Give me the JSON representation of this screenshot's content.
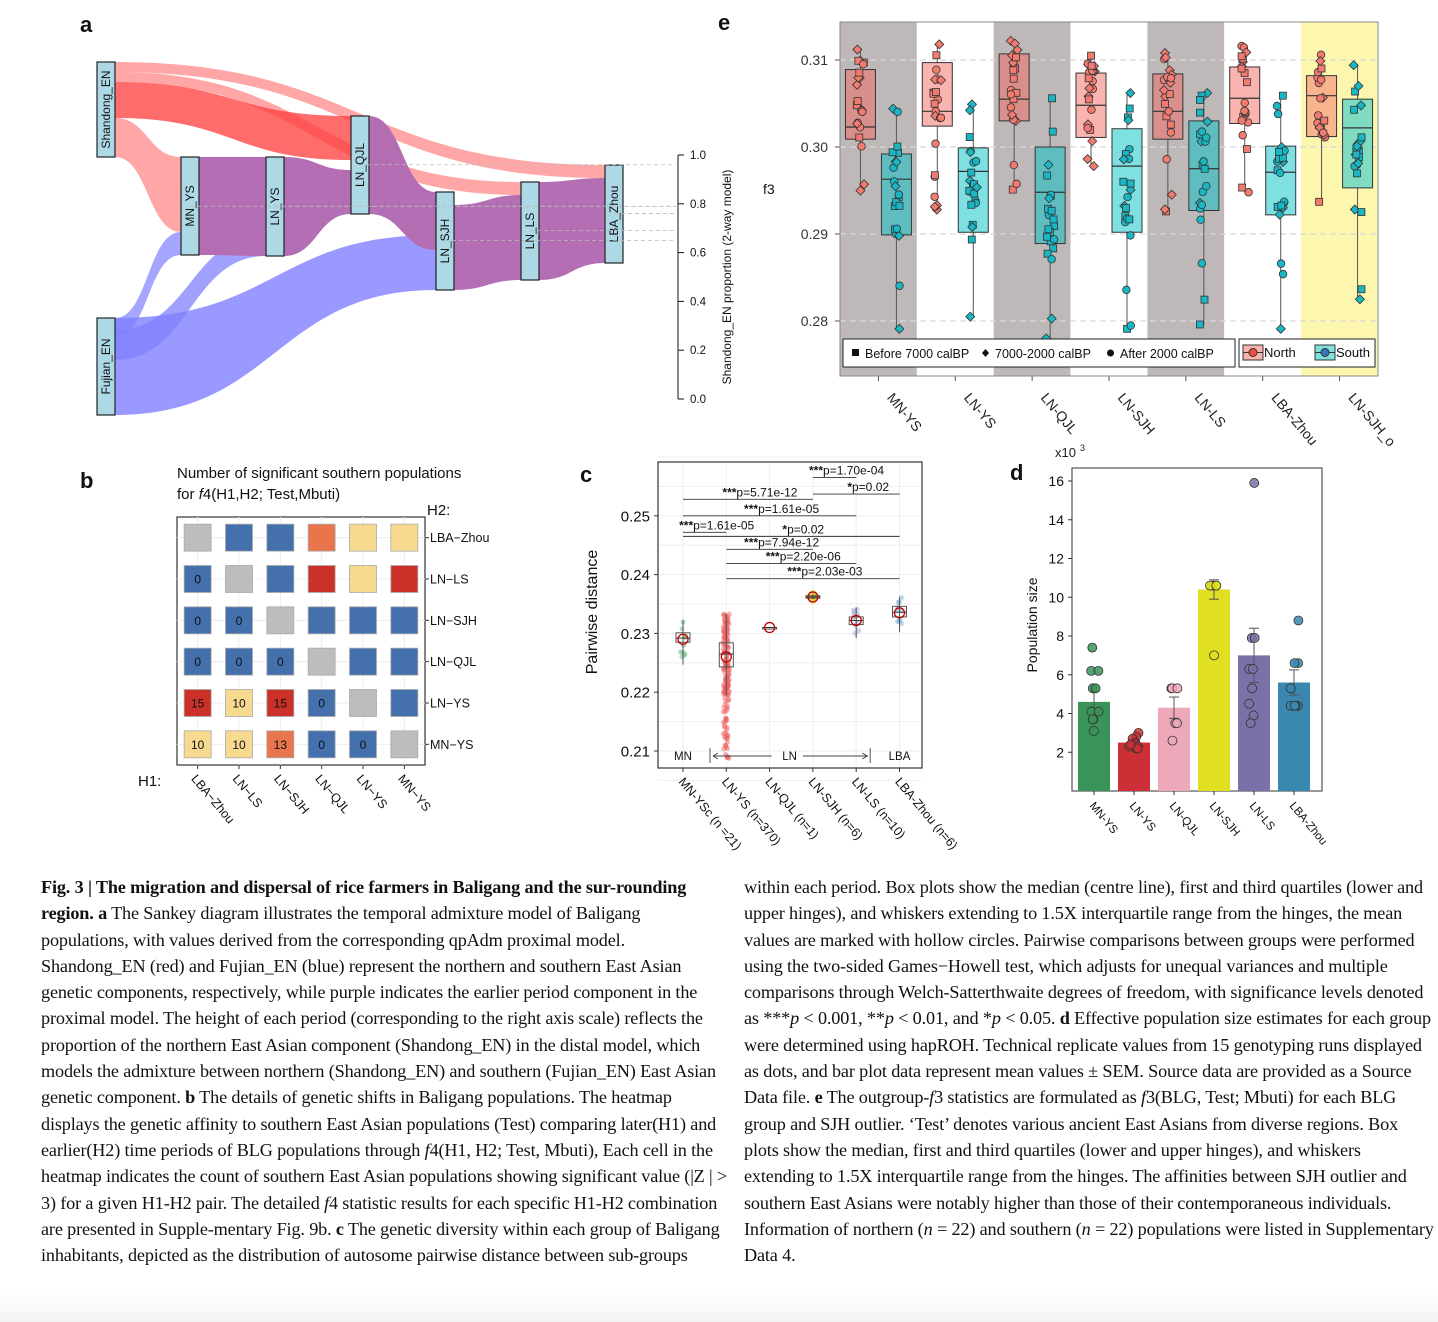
{
  "panels": {
    "a": "a",
    "b": "b",
    "c": "c",
    "d": "d",
    "e": "e"
  },
  "chart_data": [
    {
      "id": "a",
      "type": "sankey",
      "title": "",
      "nodes": [
        {
          "name": "Shandong_EN",
          "color": "#ff2b2b"
        },
        {
          "name": "Fujian_EN",
          "color": "#3333ff"
        },
        {
          "name": "MN_YS",
          "shandong_proportion": 0.79
        },
        {
          "name": "LN_YS",
          "shandong_proportion": 0.79
        },
        {
          "name": "LN_QJL",
          "shandong_proportion": 0.96
        },
        {
          "name": "LN_SJH",
          "shandong_proportion": 0.65
        },
        {
          "name": "LN_LS",
          "shandong_proportion": 0.69
        },
        {
          "name": "LBA_Zhou",
          "shandong_proportion": 0.76
        }
      ],
      "flow_colors": {
        "northern": "#ff6b6b",
        "southern": "#8080ff",
        "earlier_period": "#b46fb4"
      },
      "right_axis": {
        "label": "Shandong_EN proportion (2-way model)",
        "ticks": [
          "0.0",
          "0.2",
          "0.4",
          "0.6",
          "0.8",
          "1.0"
        ],
        "range": [
          0,
          1
        ]
      }
    },
    {
      "id": "b",
      "type": "heatmap",
      "title_line1": "Number of significant southern populations",
      "title_line2_prefix": "for ",
      "title_line2_italic": "f",
      "title_line2_suffix": "4(H1,H2; Test,Mbuti)",
      "x_axis_label": "H1:",
      "y_axis_label": "H2:",
      "x_categories": [
        "LBA−Zhou",
        "LN−LS",
        "LN−SJH",
        "LN−QJL",
        "LN−YS",
        "MN−YS"
      ],
      "y_categories": [
        "LBA−Zhou",
        "LN−LS",
        "LN−SJH",
        "LN−QJL",
        "LN−YS",
        "MN−YS"
      ],
      "cells": [
        [
          {
            "c": "diag",
            "v": ""
          },
          {
            "c": "blue",
            "v": ""
          },
          {
            "c": "blue",
            "v": ""
          },
          {
            "c": "orange",
            "v": ""
          },
          {
            "c": "yellow",
            "v": ""
          },
          {
            "c": "yellow",
            "v": ""
          }
        ],
        [
          {
            "c": "blue",
            "v": "0"
          },
          {
            "c": "diag",
            "v": ""
          },
          {
            "c": "blue",
            "v": ""
          },
          {
            "c": "red",
            "v": ""
          },
          {
            "c": "yellow",
            "v": ""
          },
          {
            "c": "red",
            "v": ""
          }
        ],
        [
          {
            "c": "blue",
            "v": "0"
          },
          {
            "c": "blue",
            "v": "0"
          },
          {
            "c": "diag",
            "v": ""
          },
          {
            "c": "blue",
            "v": ""
          },
          {
            "c": "blue",
            "v": ""
          },
          {
            "c": "blue",
            "v": ""
          }
        ],
        [
          {
            "c": "blue",
            "v": "0"
          },
          {
            "c": "blue",
            "v": "0"
          },
          {
            "c": "blue",
            "v": "0"
          },
          {
            "c": "diag",
            "v": ""
          },
          {
            "c": "blue",
            "v": ""
          },
          {
            "c": "blue",
            "v": ""
          }
        ],
        [
          {
            "c": "red",
            "v": "15"
          },
          {
            "c": "yellow",
            "v": "10"
          },
          {
            "c": "red",
            "v": "15"
          },
          {
            "c": "blue",
            "v": "0"
          },
          {
            "c": "diag",
            "v": ""
          },
          {
            "c": "blue",
            "v": ""
          }
        ],
        [
          {
            "c": "yellow",
            "v": "10"
          },
          {
            "c": "yellow",
            "v": "10"
          },
          {
            "c": "orange",
            "v": "13"
          },
          {
            "c": "blue",
            "v": "0"
          },
          {
            "c": "blue",
            "v": "0"
          },
          {
            "c": "diag",
            "v": ""
          }
        ]
      ],
      "palette": {
        "blue": "#4470ab",
        "red": "#cc3129",
        "orange": "#e8754b",
        "yellow": "#f7da8f",
        "diag": "#bdbdbd"
      }
    },
    {
      "id": "c",
      "type": "box",
      "ylabel": "Pairwise distance",
      "ylim": [
        0.2085,
        0.2605
      ],
      "yticks": [
        "0.21",
        "0.22",
        "0.23",
        "0.24",
        "0.25"
      ],
      "yvals": [
        0.21,
        0.22,
        0.23,
        0.24,
        0.25
      ],
      "categories": [
        "MN-YSc (n =21)",
        "LN-YS (n=370)",
        "LN-QJL (n=1)",
        "LN-SJH (n=6)",
        "LN-LS (n=10)",
        "LBA-Zhou (n=6)"
      ],
      "groups": [
        {
          "color": "#5fb87a",
          "q1": 0.2285,
          "median": 0.2292,
          "q3": 0.2301,
          "lo": 0.2247,
          "hi": 0.2323,
          "mean": 0.229,
          "spread": [
            0.2245,
            0.2323
          ]
        },
        {
          "color": "#ee5a5a",
          "q1": 0.2243,
          "median": 0.2265,
          "q3": 0.2284,
          "lo": 0.2195,
          "hi": 0.2334,
          "mean": 0.226,
          "spread": [
            0.2085,
            0.2334
          ]
        },
        {
          "color": "#cc2020",
          "q1": 0.231,
          "median": 0.231,
          "q3": 0.231,
          "lo": 0.231,
          "hi": 0.231,
          "mean": 0.231,
          "spread": [
            0.231,
            0.231
          ]
        },
        {
          "color": "#e6d22a",
          "q1": 0.236,
          "median": 0.2362,
          "q3": 0.2364,
          "lo": 0.2358,
          "hi": 0.2367,
          "mean": 0.2362,
          "spread": [
            0.2358,
            0.2367
          ]
        },
        {
          "color": "#9b9bd0",
          "q1": 0.2315,
          "median": 0.2322,
          "q3": 0.2328,
          "lo": 0.2292,
          "hi": 0.2344,
          "mean": 0.2322,
          "spread": [
            0.2292,
            0.2344
          ]
        },
        {
          "color": "#6ea9d6",
          "q1": 0.2328,
          "median": 0.2336,
          "q3": 0.2346,
          "lo": 0.2302,
          "hi": 0.2362,
          "mean": 0.2335,
          "spread": [
            0.2302,
            0.2362
          ]
        }
      ],
      "comparisons": [
        {
          "label_stars": "***",
          "label_p": "p=1.70e-04",
          "from": 3,
          "to": 4,
          "y": 0.2565
        },
        {
          "label_stars": "*",
          "label_p": "p=0.02",
          "from": 3,
          "to": 5,
          "y": 0.2537
        },
        {
          "label_stars": "***",
          "label_p": "p=5.71e-12",
          "from": 0,
          "to": 3,
          "y": 0.2528
        },
        {
          "label_stars": "***",
          "label_p": "p=1.61e-05",
          "from": 0,
          "to": 4,
          "y": 0.25
        },
        {
          "label_stars": "***",
          "label_p": "p=1.61e-05",
          "from": 0,
          "to": 1,
          "y": 0.2472
        },
        {
          "label_stars": "*",
          "label_p": "p=0.02",
          "from": 0,
          "to": 5,
          "y": 0.2465
        },
        {
          "label_stars": "***",
          "label_p": "p=7.94e-12",
          "from": 1,
          "to": 3,
          "y": 0.2443
        },
        {
          "label_stars": "***",
          "label_p": "p=2.20e-06",
          "from": 1,
          "to": 4,
          "y": 0.2419
        },
        {
          "label_stars": "***",
          "label_p": "p=2.03e-03",
          "from": 1,
          "to": 5,
          "y": 0.2393
        }
      ],
      "period_labels": {
        "mn": "MN",
        "ln": "LN",
        "lba": "LBA"
      }
    },
    {
      "id": "d",
      "type": "bar",
      "ylabel": "Population size",
      "yscale_label": "x10",
      "yscale_exp": "3",
      "ylim": [
        0,
        16.6
      ],
      "yticks": [
        "2",
        "4",
        "6",
        "8",
        "10",
        "12",
        "14",
        "16"
      ],
      "yvals": [
        2,
        4,
        6,
        8,
        10,
        12,
        14,
        16
      ],
      "categories": [
        "MN-YS",
        "LN-YS",
        "LN-QJL",
        "LN-SJH",
        "LN-LS",
        "LBA-Zhou"
      ],
      "values": [
        4.6,
        2.5,
        4.3,
        10.4,
        7.0,
        5.6
      ],
      "sem": [
        0.55,
        0.15,
        0.55,
        0.5,
        1.4,
        0.65
      ],
      "colors": [
        "#3a9358",
        "#cc2f35",
        "#eda9b9",
        "#e0df22",
        "#7a71a8",
        "#3a87b0"
      ],
      "points": [
        [
          7.4,
          6.2,
          6.2,
          5.3,
          5.3,
          4.1,
          4.1,
          3.7,
          3.7,
          3.1
        ],
        [
          3.0,
          2.8,
          2.7,
          2.5,
          2.4,
          2.3,
          2.3,
          2.2,
          2.2,
          2.4
        ],
        [
          5.3,
          5.3,
          5.3,
          3.5,
          3.5,
          2.6
        ],
        [
          10.6,
          10.6,
          10.6,
          10.6,
          7.0
        ],
        [
          15.9,
          7.9,
          7.9,
          6.3,
          6.3,
          5.3,
          4.5,
          3.9,
          3.5
        ],
        [
          8.8,
          6.6,
          6.6,
          5.3,
          5.3,
          4.4,
          4.4,
          4.4,
          4.4
        ]
      ]
    },
    {
      "id": "e",
      "type": "box",
      "ylabel": "f3",
      "ylim": [
        0.2755,
        0.3143
      ],
      "yticks": [
        "0.28",
        "0.29",
        "0.30",
        "0.31"
      ],
      "yvals": [
        0.28,
        0.29,
        0.3,
        0.31
      ],
      "categories": [
        "MN-YS",
        "LN-YS",
        "LN-QJL",
        "LN-SJH",
        "LN-LS",
        "LBA-Zhou",
        "LN-SJH_o"
      ],
      "bands": [
        "#beb8b8",
        "#ffffff",
        "#beb8b8",
        "#ffffff",
        "#beb8b8",
        "#ffffff",
        "#fdf6ae"
      ],
      "north": [
        {
          "q1": 0.3009,
          "median": 0.3023,
          "q3": 0.3089,
          "lo": 0.295,
          "hi": 0.3112,
          "fill": "#d98f8c"
        },
        {
          "q1": 0.3024,
          "median": 0.3041,
          "q3": 0.3097,
          "lo": 0.2928,
          "hi": 0.3118,
          "fill": "#f9b4b0"
        },
        {
          "q1": 0.303,
          "median": 0.3055,
          "q3": 0.3107,
          "lo": 0.2951,
          "hi": 0.3122,
          "fill": "#d98f8c"
        },
        {
          "q1": 0.3011,
          "median": 0.3048,
          "q3": 0.3085,
          "lo": 0.2978,
          "hi": 0.3105,
          "fill": "#f9b4b0"
        },
        {
          "q1": 0.3009,
          "median": 0.3041,
          "q3": 0.3084,
          "lo": 0.2926,
          "hi": 0.3108,
          "fill": "#d98f8c"
        },
        {
          "q1": 0.3027,
          "median": 0.3056,
          "q3": 0.3092,
          "lo": 0.2948,
          "hi": 0.3116,
          "fill": "#f9b4b0"
        },
        {
          "q1": 0.3012,
          "median": 0.3059,
          "q3": 0.3082,
          "lo": 0.2937,
          "hi": 0.3106,
          "fill": "#f9b48e"
        }
      ],
      "south": [
        {
          "q1": 0.2899,
          "median": 0.2963,
          "q3": 0.2992,
          "lo": 0.2791,
          "hi": 0.3044,
          "fill": "#5fbdbf"
        },
        {
          "q1": 0.2902,
          "median": 0.2972,
          "q3": 0.2999,
          "lo": 0.2805,
          "hi": 0.3049,
          "fill": "#7fe0e2"
        },
        {
          "q1": 0.2889,
          "median": 0.2948,
          "q3": 0.3,
          "lo": 0.278,
          "hi": 0.3056,
          "fill": "#5fbdbf"
        },
        {
          "q1": 0.2902,
          "median": 0.2978,
          "q3": 0.3021,
          "lo": 0.2791,
          "hi": 0.3062,
          "fill": "#7fe0e2"
        },
        {
          "q1": 0.2927,
          "median": 0.2975,
          "q3": 0.303,
          "lo": 0.2796,
          "hi": 0.3062,
          "fill": "#5fbdbf"
        },
        {
          "q1": 0.2922,
          "median": 0.2971,
          "q3": 0.3001,
          "lo": 0.2791,
          "hi": 0.3059,
          "fill": "#7fe0e2"
        },
        {
          "q1": 0.2953,
          "median": 0.3022,
          "q3": 0.3055,
          "lo": 0.2825,
          "hi": 0.3094,
          "fill": "#7fdcc0"
        }
      ],
      "legend_shapes": [
        {
          "shape": "square",
          "label": "Before 7000 calBP"
        },
        {
          "shape": "diamond",
          "label": "7000-2000 calBP"
        },
        {
          "shape": "circle",
          "label": "After 2000 calBP"
        }
      ],
      "legend_groups": [
        {
          "label": "North",
          "fill": "#f9b4b0",
          "dot": "#ee5040"
        },
        {
          "label": "South",
          "fill": "#7fe0e2",
          "dot": "#3b75b8"
        }
      ],
      "point_colors": {
        "north": "#f27a6e",
        "south": "#19b6c4"
      }
    }
  ],
  "caption": {
    "left": [
      {
        "t": "b",
        "v": "Fig. 3 | The migration and dispersal of rice farmers in Baligang and the sur-rounding region. a"
      },
      {
        "t": "n",
        "v": " The Sankey diagram illustrates the temporal admixture model of Baligang populations, with values derived from the corresponding qpAdm proximal model. Shandong_EN (red) and Fujian_EN (blue) represent the northern and southern East Asian genetic components, respectively, while purple indicates the earlier period component in the proximal model. The height of each period (corresponding to the right axis scale) reflects the proportion of the northern East Asian component (Shandong_EN) in the distal model, which models the admixture between northern (Shandong_EN) and southern (Fujian_EN) East Asian genetic component. "
      },
      {
        "t": "b",
        "v": "b"
      },
      {
        "t": "n",
        "v": " The details of genetic shifts in Baligang populations. The heatmap displays the genetic affinity to southern East Asian populations (Test) comparing later(H1) and earlier(H2) time periods of BLG populations through "
      },
      {
        "t": "i",
        "v": "f"
      },
      {
        "t": "n",
        "v": "4(H1, H2; Test, Mbuti), Each cell in the heatmap indicates the count of southern East Asian populations showing significant value (|Z | > 3) for a given H1-H2 pair. The detailed "
      },
      {
        "t": "i",
        "v": "f"
      },
      {
        "t": "n",
        "v": "4 statistic results for each specific H1-H2 combination are presented in Supple-mentary Fig. 9b. "
      },
      {
        "t": "b",
        "v": "c"
      },
      {
        "t": "n",
        "v": " The genetic diversity within each group of Baligang inhabitants, depicted as the distribution of autosome pairwise distance between sub-groups"
      }
    ],
    "right": [
      {
        "t": "n",
        "v": "within each period. Box plots show the median (centre line), first and third quartiles (lower and upper hinges), and whiskers extending to 1.5X interquartile range from the hinges, the mean values are marked with hollow circles. Pairwise comparisons between groups were performed using the two-sided Games−Howell test, which adjusts for unequal variances and multiple comparisons through Welch-Satterthwaite degrees of freedom, with significance levels denoted as ***"
      },
      {
        "t": "i",
        "v": "p"
      },
      {
        "t": "n",
        "v": " < 0.001, **"
      },
      {
        "t": "i",
        "v": "p"
      },
      {
        "t": "n",
        "v": " < 0.01, and *"
      },
      {
        "t": "i",
        "v": "p"
      },
      {
        "t": "n",
        "v": " < 0.05. "
      },
      {
        "t": "b",
        "v": "d"
      },
      {
        "t": "n",
        "v": " Effective population size estimates for each group were determined using hapROH. Technical replicate values from 15 genotyping runs displayed as dots, and bar plot data represent mean values ± SEM. Source data are provided as a Source Data file. "
      },
      {
        "t": "b",
        "v": "e"
      },
      {
        "t": "n",
        "v": " The outgroup-"
      },
      {
        "t": "i",
        "v": "f"
      },
      {
        "t": "n",
        "v": "3 statistics are formulated as "
      },
      {
        "t": "i",
        "v": "f"
      },
      {
        "t": "n",
        "v": "3(BLG, Test; Mbuti) for each BLG group and SJH outlier. ‘Test’ denotes various ancient East Asians from diverse regions. Box plots show the median, first and third quartiles (lower and upper hinges), and whiskers extending to 1.5X interquartile range from the hinges. The affinities between SJH outlier and southern East Asians were notably higher than those of their contemporaneous individuals. Information of northern ("
      },
      {
        "t": "i",
        "v": "n"
      },
      {
        "t": "n",
        "v": " = 22) and southern ("
      },
      {
        "t": "i",
        "v": "n"
      },
      {
        "t": "n",
        "v": " = 22) populations were listed in Supplementary Data 4."
      }
    ]
  }
}
